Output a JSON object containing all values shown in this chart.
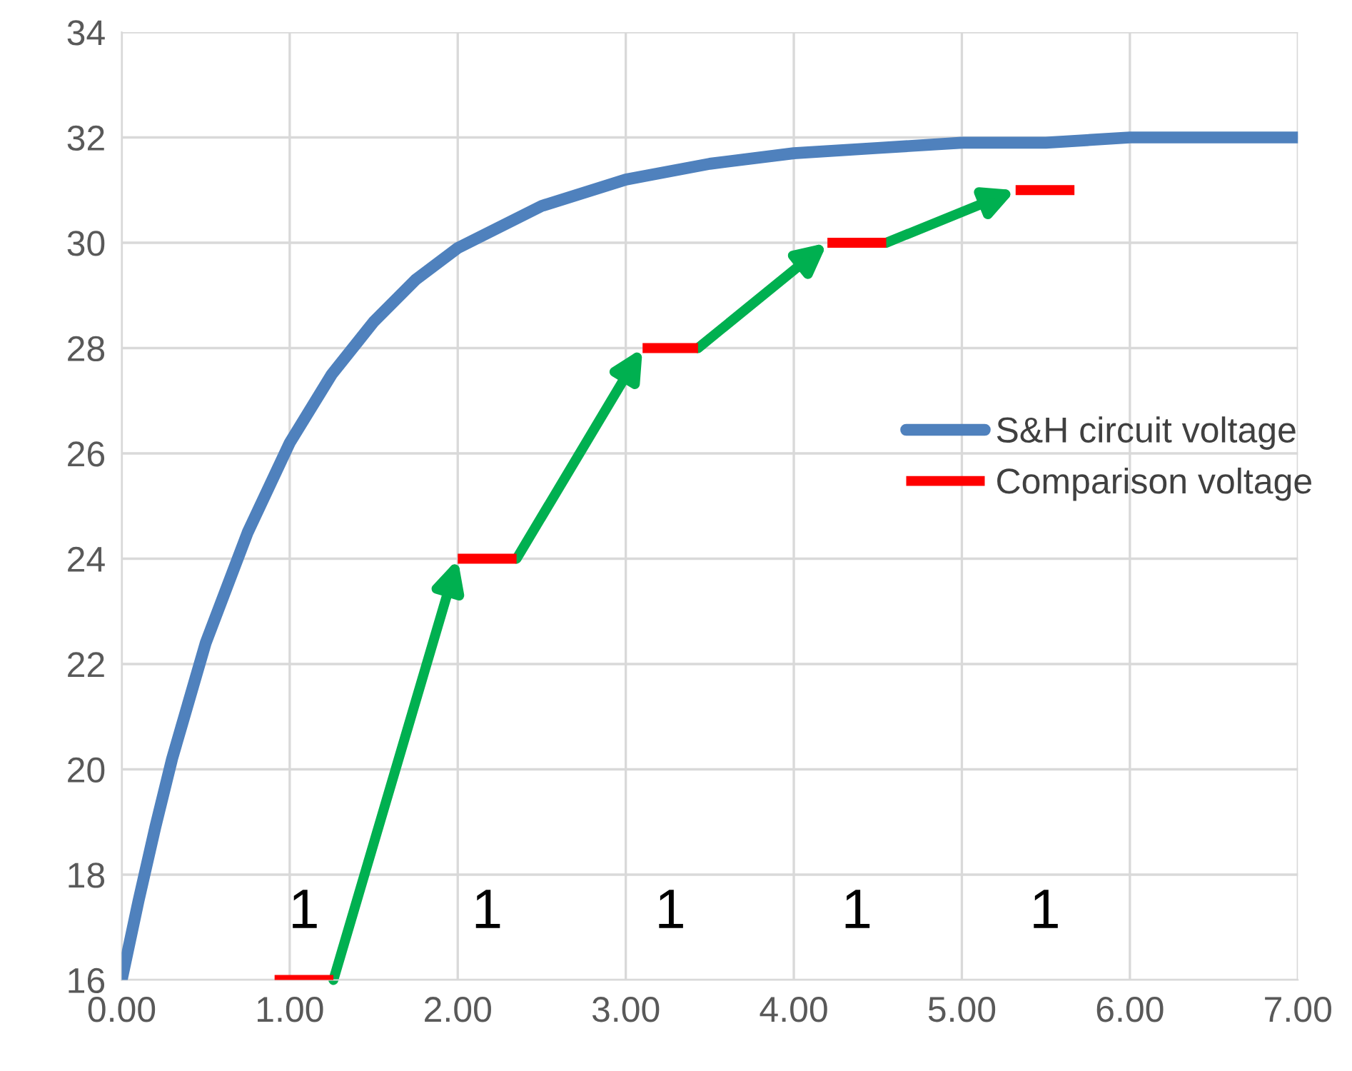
{
  "chart_data": {
    "type": "line",
    "xlim": [
      0,
      7
    ],
    "ylim": [
      16,
      34
    ],
    "xticks": [
      {
        "value": 0,
        "label": "0.00"
      },
      {
        "value": 1,
        "label": "1.00"
      },
      {
        "value": 2,
        "label": "2.00"
      },
      {
        "value": 3,
        "label": "3.00"
      },
      {
        "value": 4,
        "label": "4.00"
      },
      {
        "value": 5,
        "label": "5.00"
      },
      {
        "value": 6,
        "label": "6.00"
      },
      {
        "value": 7,
        "label": "7.00"
      }
    ],
    "yticks": [
      16,
      18,
      20,
      22,
      24,
      26,
      28,
      30,
      32,
      34
    ],
    "grid": true,
    "legend": "right",
    "marker": "none",
    "line_style": "solid",
    "series": [
      {
        "name": "S&H circuit voltage",
        "color": "#4f81bd",
        "x": [
          0,
          0.1,
          0.2,
          0.3,
          0.5,
          0.75,
          1,
          1.25,
          1.5,
          1.75,
          2,
          2.5,
          3,
          3.5,
          4,
          4.5,
          5,
          5.5,
          6,
          6.5,
          7
        ],
        "values": [
          16.0,
          17.5,
          18.9,
          20.2,
          22.4,
          24.5,
          26.2,
          27.5,
          28.5,
          29.3,
          29.9,
          30.7,
          31.2,
          31.5,
          31.7,
          31.8,
          31.9,
          31.9,
          32.0,
          32.0,
          32.0
        ]
      },
      {
        "name": "Comparison voltage",
        "color": "#ff0000",
        "x": [
          0.91,
          1.26,
          1.6,
          2.0,
          2.35,
          2.7,
          3.1,
          3.43,
          3.8,
          4.2,
          4.55,
          4.9,
          5.32,
          5.67
        ],
        "values": [
          16,
          16,
          null,
          24,
          24,
          null,
          28,
          28,
          null,
          30,
          30,
          null,
          31,
          31
        ]
      }
    ],
    "annotations": [
      "1",
      "1",
      "1",
      "1",
      "1"
    ]
  }
}
